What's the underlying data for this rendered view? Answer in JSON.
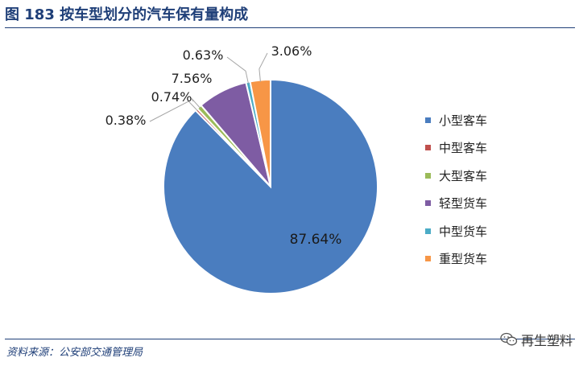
{
  "header": {
    "title": "图 183 按车型划分的汽车保有量构成"
  },
  "footer": {
    "source": "资料来源：公安部交通管理局"
  },
  "watermark": {
    "text": "再生塑料",
    "icon": "wechat-icon"
  },
  "chart_data": {
    "type": "pie",
    "title": "",
    "start_angle_deg": 0,
    "direction": "clockwise",
    "legend_position": "right",
    "slices": [
      {
        "label": "小型客车",
        "value": 87.64,
        "value_label": "87.64%",
        "color": "#4a7dbf"
      },
      {
        "label": "中型客车",
        "value": 0.38,
        "value_label": "0.38%",
        "color": "#c0504d"
      },
      {
        "label": "大型客车",
        "value": 0.74,
        "value_label": "0.74%",
        "color": "#9bbb59"
      },
      {
        "label": "轻型货车",
        "value": 7.56,
        "value_label": "7.56%",
        "color": "#7e5ca3"
      },
      {
        "label": "中型货车",
        "value": 0.63,
        "value_label": "0.63%",
        "color": "#4bacc6"
      },
      {
        "label": "重型货车",
        "value": 3.06,
        "value_label": "3.06%",
        "color": "#f79646"
      }
    ]
  }
}
